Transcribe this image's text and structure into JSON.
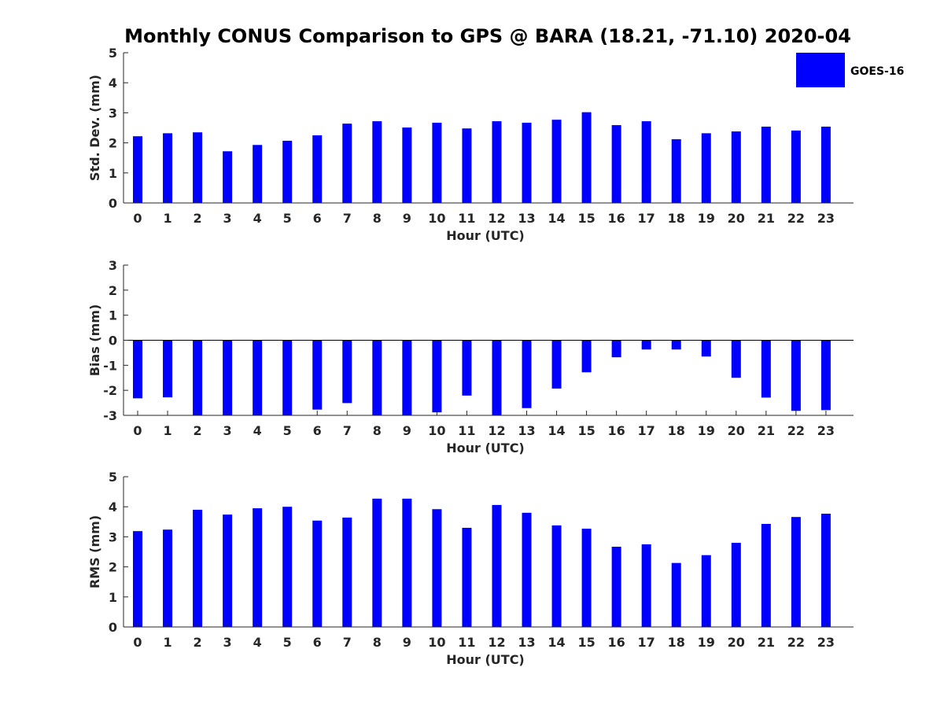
{
  "title": "Monthly CONUS Comparison to GPS @ BARA (18.21, -71.10) 2020-04",
  "legend": {
    "label": "GOES-16"
  },
  "colors": {
    "bar": "#0000ff",
    "axis": "#262626",
    "text": "#000000"
  },
  "chart_data": [
    {
      "type": "bar",
      "ylabel": "Std. Dev. (mm)",
      "xlabel": "Hour (UTC)",
      "ylim": [
        0,
        5
      ],
      "yticks": [
        0,
        1,
        2,
        3,
        4,
        5
      ],
      "categories": [
        "0",
        "1",
        "2",
        "3",
        "4",
        "5",
        "6",
        "7",
        "8",
        "9",
        "10",
        "11",
        "12",
        "13",
        "14",
        "15",
        "16",
        "17",
        "18",
        "19",
        "20",
        "21",
        "22",
        "23"
      ],
      "series": [
        {
          "name": "GOES-16",
          "values": [
            2.22,
            2.32,
            2.35,
            1.72,
            1.93,
            2.07,
            2.25,
            2.64,
            2.72,
            2.51,
            2.67,
            2.48,
            2.72,
            2.67,
            2.77,
            3.02,
            2.59,
            2.72,
            2.12,
            2.32,
            2.38,
            2.54,
            2.41,
            2.54
          ]
        }
      ],
      "grid": false
    },
    {
      "type": "bar",
      "ylabel": "Bias (mm)",
      "xlabel": "Hour (UTC)",
      "ylim": [
        -3,
        3
      ],
      "yticks": [
        -3,
        -2,
        -1,
        0,
        1,
        2,
        3
      ],
      "categories": [
        "0",
        "1",
        "2",
        "3",
        "4",
        "5",
        "6",
        "7",
        "8",
        "9",
        "10",
        "11",
        "12",
        "13",
        "14",
        "15",
        "16",
        "17",
        "18",
        "19",
        "20",
        "21",
        "22",
        "23"
      ],
      "series": [
        {
          "name": "GOES-16",
          "values": [
            -2.32,
            -2.28,
            -3.0,
            -3.0,
            -3.0,
            -3.0,
            -2.77,
            -2.51,
            -3.0,
            -3.0,
            -2.88,
            -2.21,
            -3.0,
            -2.71,
            -1.93,
            -1.28,
            -0.68,
            -0.37,
            -0.37,
            -0.65,
            -1.5,
            -2.29,
            -2.82,
            -2.79
          ]
        }
      ],
      "grid": false
    },
    {
      "type": "bar",
      "ylabel": "RMS (mm)",
      "xlabel": "Hour (UTC)",
      "ylim": [
        0,
        5
      ],
      "yticks": [
        0,
        1,
        2,
        3,
        4,
        5
      ],
      "categories": [
        "0",
        "1",
        "2",
        "3",
        "4",
        "5",
        "6",
        "7",
        "8",
        "9",
        "10",
        "11",
        "12",
        "13",
        "14",
        "15",
        "16",
        "17",
        "18",
        "19",
        "20",
        "21",
        "22",
        "23"
      ],
      "series": [
        {
          "name": "GOES-16",
          "values": [
            3.19,
            3.24,
            3.9,
            3.74,
            3.95,
            4.0,
            3.54,
            3.64,
            4.27,
            4.27,
            3.92,
            3.3,
            4.06,
            3.8,
            3.38,
            3.27,
            2.67,
            2.75,
            2.13,
            2.39,
            2.8,
            3.43,
            3.66,
            3.77
          ]
        }
      ],
      "grid": false
    }
  ]
}
